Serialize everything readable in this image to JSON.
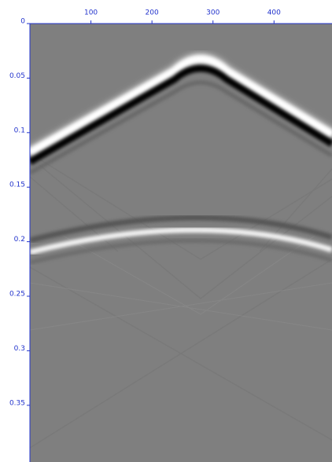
{
  "chart_data": {
    "type": "image",
    "xlim": [
      0,
      495
    ],
    "ylim": [
      0,
      0.402
    ],
    "xticks": [
      100,
      200,
      300,
      400
    ],
    "yticks": [
      0,
      0.05,
      0.1,
      0.15,
      0.2,
      0.25,
      0.3,
      0.35
    ],
    "x_axis_position": "top",
    "y_inverted": true,
    "axis_color": "#2233cc"
  }
}
